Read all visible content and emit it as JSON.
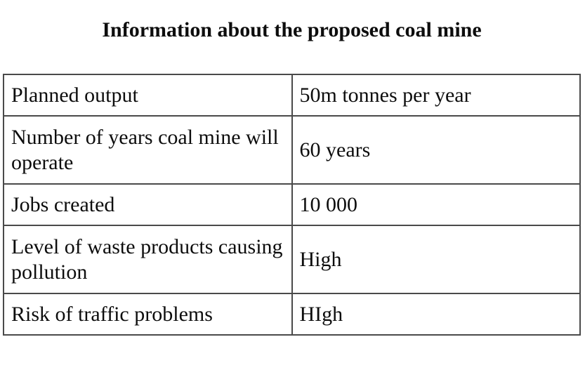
{
  "title": "Information about the proposed coal mine",
  "table": {
    "rows": [
      {
        "label": "Planned output",
        "value": "50m tonnes per year"
      },
      {
        "label": "Number of years coal mine will operate",
        "value": "60 years"
      },
      {
        "label": "Jobs created",
        "value": "10 000"
      },
      {
        "label": "Level of waste products causing pollution",
        "value": "High"
      },
      {
        "label": "Risk of traffic problems",
        "value": "HIgh"
      }
    ]
  },
  "colors": {
    "border": "#4a4a4a",
    "text": "#0d0d0d",
    "background": "#ffffff"
  }
}
